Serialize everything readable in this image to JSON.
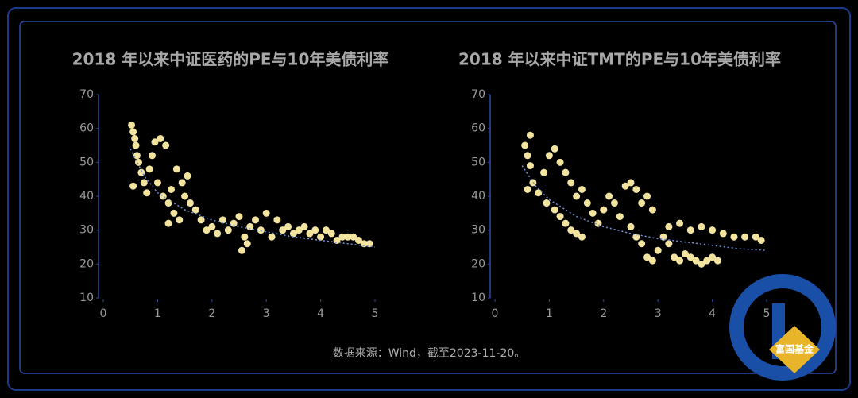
{
  "chart_data": [
    {
      "type": "scatter",
      "title": "2018 年以来中证医药的PE与10年美债利率",
      "x": [
        0.52,
        0.55,
        0.58,
        0.6,
        0.62,
        0.65,
        0.55,
        0.7,
        0.75,
        0.8,
        0.85,
        0.9,
        0.95,
        1.05,
        1.15,
        1.0,
        1.1,
        1.2,
        1.25,
        1.35,
        1.45,
        1.5,
        1.55,
        1.6,
        1.3,
        1.4,
        1.2,
        1.7,
        1.8,
        1.9,
        2.0,
        2.1,
        2.2,
        2.3,
        2.4,
        2.5,
        2.6,
        2.7,
        2.55,
        2.65,
        2.8,
        2.9,
        3.0,
        3.1,
        3.2,
        3.3,
        3.4,
        3.5,
        3.6,
        3.7,
        3.8,
        3.9,
        4.0,
        4.1,
        4.2,
        4.3,
        4.4,
        4.5,
        4.6,
        4.7,
        4.8,
        4.9
      ],
      "values": [
        61,
        59,
        57,
        55,
        52,
        50,
        43,
        47,
        44,
        41,
        48,
        52,
        56,
        57,
        55,
        44,
        40,
        38,
        42,
        48,
        44,
        40,
        46,
        38,
        35,
        33,
        32,
        36,
        33,
        30,
        31,
        29,
        33,
        30,
        32,
        34,
        28,
        31,
        24,
        26,
        33,
        30,
        35,
        28,
        33,
        30,
        31,
        29,
        30,
        31,
        29,
        30,
        28,
        30,
        29,
        27,
        28,
        28,
        28,
        27,
        26,
        26
      ],
      "color": "#fff0a8",
      "trendline": {
        "x": [
          0.5,
          0.75,
          1,
          1.5,
          2,
          2.5,
          3,
          3.5,
          4,
          4.5,
          5
        ],
        "values": [
          54,
          46,
          41,
          36,
          33,
          31,
          29.5,
          28,
          27,
          26,
          25
        ],
        "color": "#6d8fd6"
      },
      "xlim": [
        0,
        5
      ],
      "ylim": [
        10,
        70
      ],
      "xticks": [
        0,
        1,
        2,
        3,
        4,
        5
      ],
      "yticks": [
        10,
        20,
        30,
        40,
        50,
        60,
        70
      ]
    },
    {
      "type": "scatter",
      "title": "2018 年以来中证TMT的PE与10年美债利率",
      "x": [
        0.55,
        0.65,
        0.6,
        0.65,
        0.6,
        0.7,
        0.8,
        0.9,
        1.0,
        1.1,
        1.2,
        1.3,
        1.4,
        1.5,
        1.6,
        1.7,
        1.8,
        0.95,
        1.1,
        1.2,
        1.3,
        1.4,
        1.5,
        1.6,
        1.9,
        2.0,
        2.1,
        2.2,
        2.3,
        2.4,
        2.5,
        2.6,
        2.7,
        2.8,
        2.9,
        2.5,
        2.6,
        2.7,
        2.8,
        2.9,
        3.0,
        3.1,
        3.2,
        3.3,
        3.4,
        3.5,
        3.6,
        3.7,
        3.8,
        3.9,
        4.0,
        4.1,
        3.2,
        3.4,
        3.6,
        3.8,
        4.0,
        4.2,
        4.4,
        4.6,
        4.8,
        4.9
      ],
      "values": [
        55,
        58,
        52,
        49,
        42,
        44,
        41,
        47,
        52,
        54,
        50,
        47,
        44,
        40,
        42,
        38,
        35,
        38,
        36,
        34,
        32,
        30,
        29,
        28,
        32,
        36,
        40,
        38,
        34,
        43,
        44,
        42,
        38,
        40,
        36,
        31,
        28,
        26,
        22,
        21,
        24,
        28,
        26,
        22,
        21,
        23,
        22,
        21,
        20,
        21,
        22,
        21,
        31,
        32,
        30,
        31,
        30,
        29,
        28,
        28,
        28,
        27
      ],
      "color": "#fff0a8",
      "trendline": {
        "x": [
          0.5,
          0.75,
          1,
          1.5,
          2,
          2.5,
          3,
          3.5,
          4,
          4.5,
          5
        ],
        "values": [
          49,
          43,
          39,
          34,
          31,
          29,
          27.5,
          26.5,
          25.5,
          24.5,
          24
        ],
        "color": "#6d8fd6"
      },
      "xlim": [
        0,
        5
      ],
      "ylim": [
        10,
        70
      ],
      "xticks": [
        0,
        1,
        2,
        3,
        4,
        5
      ],
      "yticks": [
        10,
        20,
        30,
        40,
        50,
        60,
        70
      ]
    }
  ],
  "source": "数据来源：Wind，截至2023-11-20。",
  "logo": "富国基金"
}
